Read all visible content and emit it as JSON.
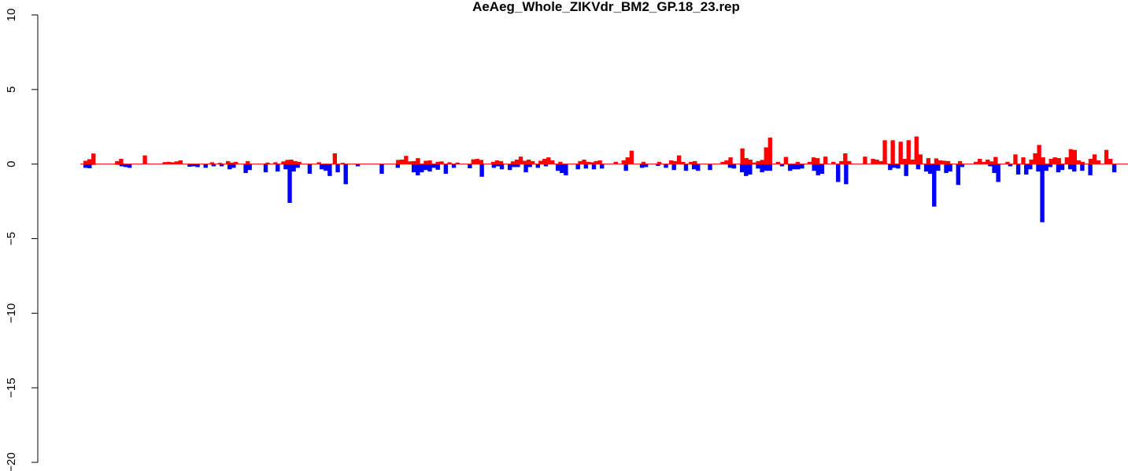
{
  "chart_data": {
    "type": "bar",
    "title": "AeAeg_Whole_ZIKVdr_BM2_GP.18_23.rep",
    "xlabel": "",
    "ylabel": "",
    "ylim": [
      -20,
      10
    ],
    "y_ticks": [
      -20,
      -15,
      -10,
      -5,
      0,
      5,
      10
    ],
    "y_tick_labels": [
      "-20",
      "-15",
      "-10",
      "-5",
      "0",
      "5",
      "10"
    ],
    "x_axis_shown": false,
    "grid": false,
    "baseline": 0,
    "series": [
      {
        "color": "#ff0000",
        "values": [
          0.22,
          0.33,
          0.71,
          0.0,
          0.0,
          0.0,
          0.0,
          0.0,
          0.2,
          0.35,
          0.0,
          0.0,
          0.0,
          0.0,
          0.0,
          0.58,
          0.0,
          0.0,
          0.0,
          0.0,
          0.13,
          0.15,
          0.12,
          0.18,
          0.25,
          0.0,
          0.0,
          0.0,
          0.0,
          0.0,
          0.0,
          0.0,
          0.12,
          0.0,
          0.08,
          0.0,
          0.2,
          0.1,
          0.15,
          0.0,
          0.0,
          0.2,
          0.0,
          0.0,
          0.0,
          0.0,
          0.1,
          0.0,
          0.12,
          0.0,
          0.18,
          0.28,
          0.3,
          0.2,
          0.15,
          0.0,
          0.0,
          0.0,
          0.0,
          0.12,
          0.0,
          0.0,
          0.0,
          0.72,
          0.0,
          0.08,
          0.0,
          0.0,
          0.0,
          0.0,
          0.0,
          0.0,
          0.0,
          0.0,
          0.0,
          0.0,
          0.0,
          0.0,
          0.0,
          0.28,
          0.3,
          0.55,
          0.18,
          0.2,
          0.4,
          0.0,
          0.22,
          0.25,
          0.0,
          0.15,
          0.18,
          0.0,
          0.12,
          0.0,
          0.1,
          0.0,
          0.0,
          0.0,
          0.32,
          0.35,
          0.28,
          0.0,
          0.0,
          0.15,
          0.25,
          0.2,
          0.0,
          0.0,
          0.18,
          0.3,
          0.5,
          0.22,
          0.3,
          0.2,
          0.0,
          0.22,
          0.35,
          0.45,
          0.25,
          0.0,
          0.15,
          0.0,
          0.0,
          0.0,
          0.0,
          0.2,
          0.3,
          0.15,
          0.12,
          0.2,
          0.25,
          0.0,
          0.0,
          0.0,
          0.15,
          0.0,
          0.25,
          0.45,
          0.9,
          0.0,
          0.0,
          0.15,
          0.0,
          0.0,
          0.0,
          0.15,
          0.0,
          0.0,
          0.25,
          0.2,
          0.58,
          0.15,
          0.0,
          0.15,
          0.2,
          0.0,
          0.0,
          0.0,
          0.0,
          0.0,
          0.0,
          0.15,
          0.25,
          0.45,
          0.0,
          0.0,
          1.05,
          0.4,
          0.3,
          0.1,
          0.2,
          0.28,
          1.12,
          1.78,
          0.0,
          0.15,
          0.0,
          0.48,
          0.0,
          0.0,
          0.15,
          0.0,
          0.0,
          0.15,
          0.45,
          0.4,
          0.0,
          0.5,
          0.0,
          0.15,
          0.0,
          0.2,
          0.72,
          0.2,
          0.0,
          0.0,
          0.0,
          0.5,
          0.0,
          0.35,
          0.3,
          0.2,
          1.6,
          0.0,
          1.6,
          0.0,
          1.5,
          0.35,
          1.6,
          0.3,
          1.85,
          0.65,
          0.0,
          0.4,
          0.0,
          0.38,
          0.25,
          0.22,
          0.2,
          0.0,
          0.0,
          0.2,
          0.0,
          0.0,
          0.0,
          0.15,
          0.35,
          0.15,
          0.3,
          0.18,
          0.48,
          0.0,
          0.0,
          0.15,
          0.0,
          0.65,
          0.0,
          0.45,
          0.0,
          0.3,
          0.72,
          1.28,
          0.45,
          0.0,
          0.35,
          0.45,
          0.4,
          0.0,
          0.45,
          1.0,
          0.95,
          0.25,
          0.15,
          0.0,
          0.35,
          0.65,
          0.25,
          0.0,
          0.95,
          0.35,
          0.0
        ]
      },
      {
        "color": "#0000ff",
        "values": [
          -0.25,
          -0.28,
          -0.05,
          0.0,
          0.0,
          0.0,
          0.0,
          0.0,
          -0.05,
          -0.15,
          -0.2,
          -0.25,
          0.0,
          0.0,
          0.0,
          0.0,
          0.0,
          0.0,
          0.0,
          0.0,
          0.0,
          0.0,
          0.0,
          0.0,
          0.0,
          0.0,
          -0.18,
          -0.15,
          -0.2,
          0.0,
          -0.25,
          0.0,
          -0.15,
          0.0,
          -0.15,
          0.0,
          -0.35,
          -0.25,
          0.0,
          0.0,
          -0.6,
          -0.4,
          0.0,
          0.0,
          0.0,
          -0.55,
          0.0,
          0.0,
          -0.5,
          0.0,
          -0.35,
          -2.6,
          -0.5,
          -0.25,
          0.0,
          0.0,
          -0.65,
          0.0,
          0.0,
          -0.35,
          -0.45,
          -0.8,
          0.0,
          -0.55,
          0.0,
          -1.35,
          0.0,
          0.0,
          -0.15,
          0.0,
          0.0,
          0.0,
          0.0,
          0.0,
          -0.65,
          0.0,
          0.0,
          0.0,
          -0.25,
          0.0,
          0.0,
          0.0,
          -0.55,
          -0.75,
          -0.55,
          -0.4,
          -0.5,
          -0.25,
          -0.38,
          0.0,
          -0.65,
          0.0,
          -0.25,
          0.0,
          0.0,
          0.0,
          -0.28,
          0.0,
          0.0,
          -0.85,
          0.0,
          0.0,
          -0.25,
          -0.15,
          -0.35,
          0.0,
          -0.4,
          -0.2,
          -0.2,
          0.0,
          -0.55,
          -0.2,
          0.0,
          -0.25,
          0.0,
          -0.15,
          0.0,
          0.0,
          -0.45,
          -0.6,
          -0.75,
          0.0,
          0.0,
          -0.35,
          0.0,
          -0.3,
          0.0,
          -0.35,
          0.0,
          -0.3,
          0.0,
          0.0,
          0.0,
          0.0,
          0.0,
          -0.45,
          0.0,
          0.0,
          0.0,
          -0.25,
          -0.2,
          0.0,
          0.0,
          -0.12,
          0.0,
          -0.25,
          0.0,
          -0.4,
          0.0,
          0.0,
          -0.45,
          0.0,
          -0.35,
          -0.45,
          0.0,
          0.0,
          -0.4,
          0.0,
          0.0,
          0.0,
          0.0,
          -0.25,
          -0.3,
          0.0,
          -0.55,
          -0.8,
          -0.7,
          0.0,
          -0.3,
          -0.55,
          -0.45,
          -0.45,
          0.0,
          0.0,
          -0.15,
          0.0,
          -0.45,
          -0.35,
          -0.35,
          -0.3,
          0.0,
          0.0,
          -0.45,
          -0.75,
          -0.65,
          0.0,
          0.0,
          0.0,
          -1.2,
          0.0,
          -1.35,
          0.0,
          0.0,
          0.0,
          0.0,
          0.0,
          0.0,
          0.0,
          0.0,
          0.0,
          0.0,
          -0.4,
          -0.25,
          -0.3,
          0.0,
          -0.8,
          0.0,
          0.0,
          -0.35,
          0.0,
          -0.5,
          -0.65,
          -2.85,
          -0.45,
          0.0,
          -0.6,
          -0.5,
          0.0,
          -1.4,
          -0.2,
          0.0,
          0.0,
          0.0,
          0.0,
          0.0,
          0.0,
          -0.15,
          -0.6,
          -1.2,
          0.0,
          0.0,
          -0.15,
          0.0,
          -0.7,
          0.0,
          -0.7,
          -0.35,
          0.0,
          -0.5,
          -3.9,
          -0.45,
          -0.2,
          0.0,
          -0.55,
          -0.4,
          0.0,
          -0.35,
          -0.5,
          0.0,
          -0.45,
          0.0,
          -0.75,
          0.0,
          0.0,
          0.0,
          0.0,
          0.0,
          -0.55
        ]
      }
    ]
  }
}
